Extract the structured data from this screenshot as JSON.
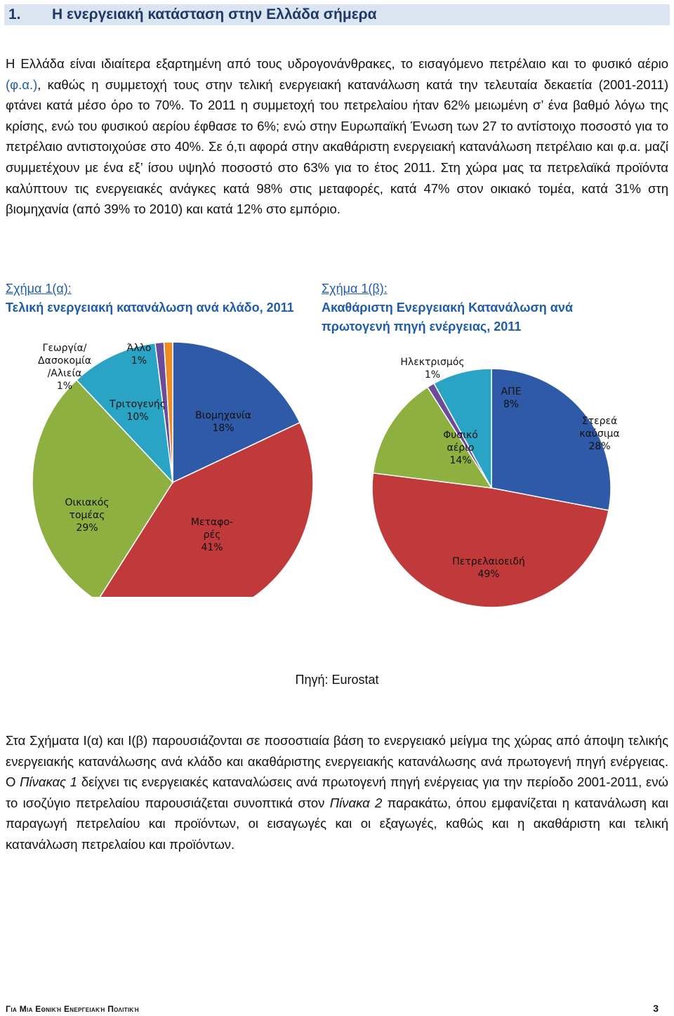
{
  "heading": {
    "number": "1.",
    "title": "Η ενεργειακή κατάσταση στην Ελλάδα σήμερα"
  },
  "paragraph1": {
    "p1_a": "Η Ελλάδα είναι ιδιαίτερα εξαρτημένη από τους υδρογονάνθρακες, το εισαγόμενο πετρέλαιο και το φυσικό αέριο ",
    "p1_link": "(φ.α.)",
    "p1_b": ", καθώς η συμμετοχή τους στην τελική ενεργειακή κατανάλωση κατά την τελευταία δεκαετία (2001-2011) φτάνει κατά μέσο όρο το 70%. Το 2011 η συμμετοχή του πετρελαίου ήταν 62% μειωμένη σ’ ένα βαθμό λόγω της κρίσης, ενώ του φυσικού αερίου έφθασε το 6%; ενώ στην Ευρωπαϊκή Ένωση των 27 το αντίστοιχο ποσοστό για το πετρέλαιο αντιστοιχούσε στο 40%. Σε ό,τι αφορά στην ακαθάριστη ενεργειακή κατανάλωση πετρέλαιο και φ.α. μαζί συμμετέχουν με ένα εξ’ ίσου υψηλό ποσοστό στο 63% για το έτος 2011. Στη χώρα μας τα πετρελαϊκά προϊόντα καλύπτουν τις ενεργειακές ανάγκες κατά 98% στις μεταφορές, κατά 47% στον οικιακό τομέα, κατά 31% στη βιομηχανία (από 39% το 2010) και κατά 12% στο εμπόριο."
  },
  "figure_a": {
    "label": "Σχήμα 1(α):",
    "title": "Τελική ενεργειακή κατανάλωση ανά κλάδο, 2011"
  },
  "figure_b": {
    "label": "Σχήμα 1(β):",
    "title": "Ακαθάριστη Ενεργειακή  Κατανάλωση ανά πρωτογενή πηγή ενέργειας, 2011"
  },
  "chart_data": [
    {
      "type": "pie",
      "title": "Τελική ενεργειακή κατανάλωση ανά κλάδο, 2011",
      "slices": [
        {
          "name": "Βιομηχανία",
          "value": 18,
          "label": "18%",
          "color": "#2e5aa8"
        },
        {
          "name": "Μεταφορές",
          "value": 41,
          "label": "41%",
          "color": "#c0393b"
        },
        {
          "name": "Οικιακός τομέας",
          "value": 29,
          "label": "29%",
          "color": "#8db041"
        },
        {
          "name": "Τριτογενής",
          "value": 10,
          "label": "10%",
          "color": "#2aa4c4"
        },
        {
          "name": "Γεωργία/ Δασοκομία /Αλιεία",
          "value": 1,
          "label": "1%",
          "color": "#6b4c9a"
        },
        {
          "name": "Άλλο",
          "value": 1,
          "label": "1%",
          "color": "#ef8c24"
        }
      ],
      "label_lines": {
        "industry": [
          "Βιομηχανία",
          "18%"
        ],
        "transport": [
          "Μεταφο-",
          "ρές",
          "41%"
        ],
        "household": [
          "Οικιακός",
          "τομέας",
          "29%"
        ],
        "tertiary": [
          "Τριτογενής",
          "10%"
        ],
        "agriculture": [
          "Γεωργία/",
          "Δασοκομία",
          "/Αλιεία",
          "1%"
        ],
        "other": [
          "Άλλο",
          "1%"
        ]
      }
    },
    {
      "type": "pie",
      "title": "Ακαθάριστη Ενεργειακή  Κατανάλωση ανά πρωτογενή πηγή ενέργειας, 2011",
      "slices": [
        {
          "name": "Στερεά καύσιμα",
          "value": 28,
          "label": "28%",
          "color": "#2e5aa8"
        },
        {
          "name": "Πετρελαιοειδή",
          "value": 49,
          "label": "49%",
          "color": "#c0393b"
        },
        {
          "name": "Φυσικό αέριο",
          "value": 14,
          "label": "14%",
          "color": "#8db041"
        },
        {
          "name": "Ηλεκτρισμός",
          "value": 1,
          "label": "1%",
          "color": "#6b4c9a"
        },
        {
          "name": "ΑΠΕ",
          "value": 8,
          "label": "8%",
          "color": "#2aa4c4"
        }
      ],
      "label_lines": {
        "solid": [
          "Στερεά",
          "καύσιμα",
          "28%"
        ],
        "oil": [
          "Πετρελαιοειδή",
          "49%"
        ],
        "gas": [
          "Φυσικό",
          "αέριο",
          "14%"
        ],
        "electricity": [
          "Ηλεκτρισμός",
          "1%"
        ],
        "res": [
          "ΑΠΕ",
          "8%"
        ]
      }
    }
  ],
  "source": "Πηγή: Eurostat",
  "paragraph2": {
    "a": "Στα Σχήματα Ι(α) και Ι(β) παρουσιάζονται σε ποσοστιαία βάση το ενεργειακό μείγμα της χώρας από άποψη τελικής ενεργειακής κατανάλωσης ανά κλάδο και ακαθάριστης ενεργειακής κατανάλωσης ανά πρωτογενή πηγή ενέργειας. Ο ",
    "b": "Πίνακας 1",
    "c": " δείχνει τις ενεργειακές καταναλώσεις ανά πρωτογενή πηγή ενέργειας για την περίοδο 2001-2011, ενώ το ισοζύγιο πετρελαίου παρουσιάζεται συνοπτικά στον ",
    "d": "Πίνακα 2",
    "e": " παρακάτω, όπου εμφανίζεται η κατανάλωση και παραγωγή πετρελαίου και προϊόντων, οι εισαγωγές και οι εξαγωγές, καθώς και η ακαθάριστη και τελική κατανάλωση πετρελαίου και προϊόντων."
  },
  "footer": {
    "left": "Για Μια Εθνική Ενεργειακή Πολιτική",
    "page": "3"
  }
}
